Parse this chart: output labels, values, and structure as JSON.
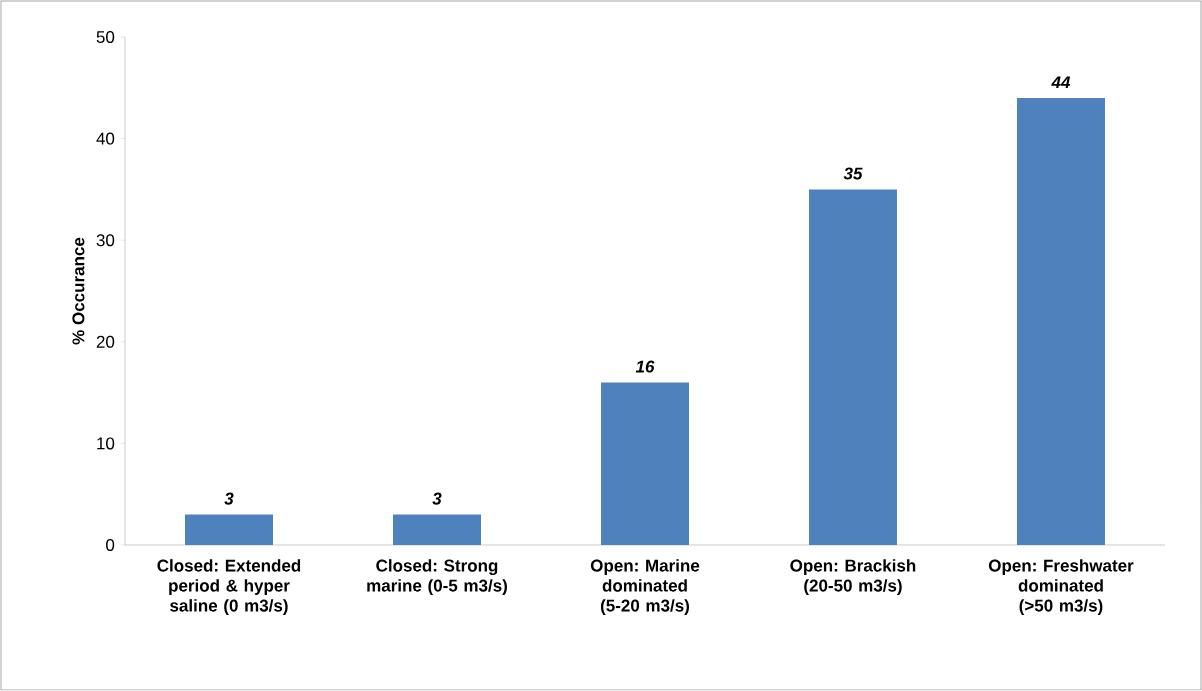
{
  "chart_data": {
    "type": "bar",
    "ylabel": "% Occurance",
    "categories": [
      "Closed: Extended period & hyper saline (0 m3/s)",
      "Closed: Strong marine (0-5 m3/s)",
      "Open: Marine dominated (5-20 m3/s)",
      "Open: Brackish (20-50 m3/s)",
      "Open: Freshwater dominated (>50 m3/s)"
    ],
    "values": [
      3,
      3,
      16,
      35,
      44
    ],
    "color": "#4f81bd",
    "ylim": [
      0,
      50
    ],
    "yticks": [
      0,
      10,
      20,
      30,
      40,
      50
    ],
    "data_labels": true,
    "grid": false
  }
}
